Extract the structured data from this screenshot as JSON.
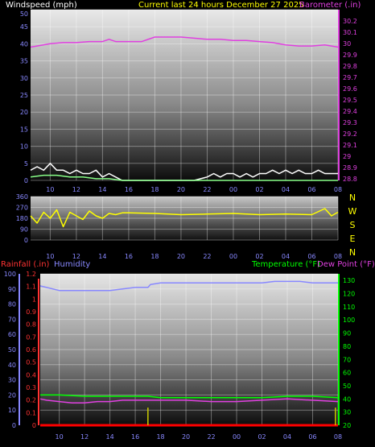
{
  "header": {
    "left_title": "Windspeed (mph)",
    "center_title": "Current last 24 hours December 27 2025",
    "right_title": "Barometer (.in)"
  },
  "compass_labels": [
    "N",
    "W",
    "S",
    "E",
    "N"
  ],
  "lower_header": {
    "rain_title": "Rainfall (.in)",
    "humidity_title": "Humidity",
    "temp_title": "Temperature (°F)",
    "dewpoint_title": "Dew Point (°F)"
  },
  "colors": {
    "wind_speed": "#ffffff",
    "wind_avg": "#88ff88",
    "barometer": "#e040e0",
    "direction": "#ffff00",
    "humidity": "#8888ff",
    "temperature": "#00ff00",
    "dewpoint": "#e040e0",
    "rain": "#ff0000",
    "rain_rate": "#cccc00",
    "axis_tick": "#8888ff",
    "axis_rain": "#ff3333",
    "axis_temp": "#00ff00"
  },
  "chart_data": [
    {
      "type": "line",
      "panel": "wind-barometer",
      "x_tick_labels": [
        "10",
        "12",
        "14",
        "16",
        "18",
        "20",
        "22",
        "00",
        "02",
        "04",
        "06",
        "08"
      ],
      "y_left": {
        "label": "Windspeed (mph)",
        "ticks": [
          0,
          5,
          10,
          15,
          20,
          25,
          30,
          35,
          40,
          45,
          50
        ],
        "range": [
          0,
          50
        ]
      },
      "y_right": {
        "label": "Barometer (.in)",
        "ticks": [
          "28.8",
          "28.9",
          "29",
          "29.1",
          "29.2",
          "29.3",
          "29.4",
          "29.5",
          "29.6",
          "29.7",
          "29.8",
          "29.9",
          "30",
          "30.1",
          "30.2"
        ],
        "range": [
          28.8,
          30.2
        ]
      },
      "grid": true,
      "series": [
        {
          "name": "Windspeed (mph)",
          "axis": "left",
          "x": [
            8.5,
            9,
            9.5,
            10,
            10.5,
            11,
            11.5,
            12,
            12.5,
            13,
            13.5,
            14,
            14.5,
            15,
            15.5,
            16,
            17,
            18,
            19,
            20,
            21,
            22,
            22.5,
            23,
            23.5,
            24,
            24.5,
            25,
            25.5,
            26,
            26.5,
            27,
            27.5,
            28,
            28.5,
            29,
            29.5,
            30,
            30.5,
            31,
            31.5,
            32
          ],
          "values": [
            3,
            4,
            3,
            5,
            3,
            3,
            2,
            3,
            2,
            2,
            3,
            1,
            2,
            1,
            0,
            0,
            0,
            0,
            0,
            0,
            0,
            1,
            2,
            1,
            2,
            2,
            1,
            2,
            1,
            2,
            2,
            3,
            2,
            3,
            2,
            3,
            2,
            2,
            3,
            2,
            2,
            2
          ]
        },
        {
          "name": "Wind average",
          "axis": "left",
          "x": [
            8.5,
            9.5,
            10.5,
            11.5,
            12.5,
            13.5,
            14.5,
            15.5,
            16.5,
            32
          ],
          "values": [
            1,
            1.5,
            1.5,
            1,
            1,
            0.5,
            0.5,
            0,
            0,
            0
          ]
        },
        {
          "name": "Barometer (.in)",
          "axis": "right",
          "x": [
            8.5,
            9,
            10,
            11,
            12,
            13,
            14,
            14.5,
            15,
            16,
            17,
            18,
            19,
            20,
            21,
            22,
            23,
            24,
            25,
            26,
            27,
            28,
            29,
            30,
            31,
            32
          ],
          "values": [
            29.98,
            29.99,
            30.01,
            30.02,
            30.02,
            30.03,
            30.03,
            30.05,
            30.03,
            30.03,
            30.03,
            30.07,
            30.07,
            30.07,
            30.06,
            30.05,
            30.05,
            30.04,
            30.04,
            30.03,
            30.02,
            30.0,
            29.99,
            29.99,
            30.0,
            29.98
          ]
        }
      ]
    },
    {
      "type": "line",
      "panel": "wind-direction",
      "x_tick_labels": [
        "10",
        "12",
        "14",
        "16",
        "18",
        "20",
        "22",
        "00",
        "02",
        "04",
        "06",
        "08"
      ],
      "y_left": {
        "label": "",
        "ticks": [
          0,
          90,
          180,
          270,
          360
        ],
        "range": [
          0,
          360
        ]
      },
      "grid": true,
      "series": [
        {
          "name": "Wind direction",
          "axis": "left",
          "x": [
            8.5,
            9,
            9.5,
            10,
            10.5,
            11,
            11.5,
            12,
            12.5,
            13,
            13.5,
            14,
            14.5,
            15,
            15.5,
            16,
            18,
            20,
            22,
            24,
            26,
            28,
            30,
            31,
            31.5,
            32
          ],
          "values": [
            200,
            140,
            230,
            180,
            250,
            110,
            230,
            200,
            170,
            240,
            200,
            180,
            220,
            210,
            225,
            225,
            220,
            210,
            215,
            220,
            210,
            215,
            210,
            260,
            200,
            230
          ]
        }
      ]
    },
    {
      "type": "line",
      "panel": "rain-humidity-temperature",
      "x_tick_labels": [
        "10",
        "12",
        "14",
        "16",
        "18",
        "20",
        "22",
        "00",
        "02",
        "04",
        "06",
        "08"
      ],
      "y_left_outer": {
        "label": "Humidity",
        "ticks": [
          0,
          10,
          20,
          30,
          40,
          50,
          60,
          70,
          80,
          90,
          100
        ],
        "range": [
          0,
          100
        ]
      },
      "y_left_inner": {
        "label": "Rainfall (.in)",
        "ticks": [
          "0",
          "0.1",
          "0.2",
          "0.3",
          "0.4",
          "0.5",
          "0.6",
          "0.7",
          "0.8",
          "0.9",
          "1",
          "1.1",
          "1.2"
        ],
        "range": [
          0,
          1.2
        ]
      },
      "y_right": {
        "label": "Temperature (°F)",
        "ticks": [
          20,
          30,
          40,
          50,
          60,
          70,
          80,
          90,
          100,
          110,
          120,
          130
        ],
        "range": [
          20,
          135
        ]
      },
      "grid": true,
      "series": [
        {
          "name": "Humidity",
          "axis": "left_outer",
          "x": [
            8.5,
            9,
            10,
            11,
            12,
            13,
            14,
            15,
            16,
            17,
            17.2,
            18,
            20,
            22,
            24,
            26,
            27,
            28,
            29,
            30,
            31,
            32
          ],
          "values": [
            92,
            91,
            89,
            89,
            89,
            89,
            89,
            90,
            91,
            91,
            93,
            94,
            94,
            94,
            94,
            94,
            95,
            95,
            95,
            94,
            94,
            94
          ]
        },
        {
          "name": "Temperature (°F)",
          "axis": "right",
          "x": [
            8.5,
            10,
            12,
            14,
            16,
            17,
            18,
            20,
            22,
            24,
            26,
            28,
            30,
            32
          ],
          "values": [
            43,
            43,
            42,
            42,
            42,
            42,
            41,
            41,
            41,
            41,
            41,
            42,
            42,
            41
          ]
        },
        {
          "name": "Dew Point (°F)",
          "axis": "right",
          "x": [
            8.5,
            9,
            10,
            11,
            12,
            13,
            14,
            15,
            16,
            17,
            18,
            20,
            22,
            24,
            26,
            28,
            30,
            32
          ],
          "values": [
            40,
            39,
            38,
            37,
            37,
            38,
            38,
            39,
            39,
            39,
            39,
            39,
            38,
            38,
            39,
            40,
            39,
            38
          ]
        },
        {
          "name": "Rainfall (.in)",
          "axis": "left_inner",
          "x": [
            8.5,
            32
          ],
          "values": [
            0,
            0
          ]
        },
        {
          "name": "Rain rate",
          "axis": "left_inner",
          "type": "bar",
          "x": [
            17,
            31.8
          ],
          "values": [
            0.14,
            0.14
          ]
        }
      ]
    }
  ]
}
